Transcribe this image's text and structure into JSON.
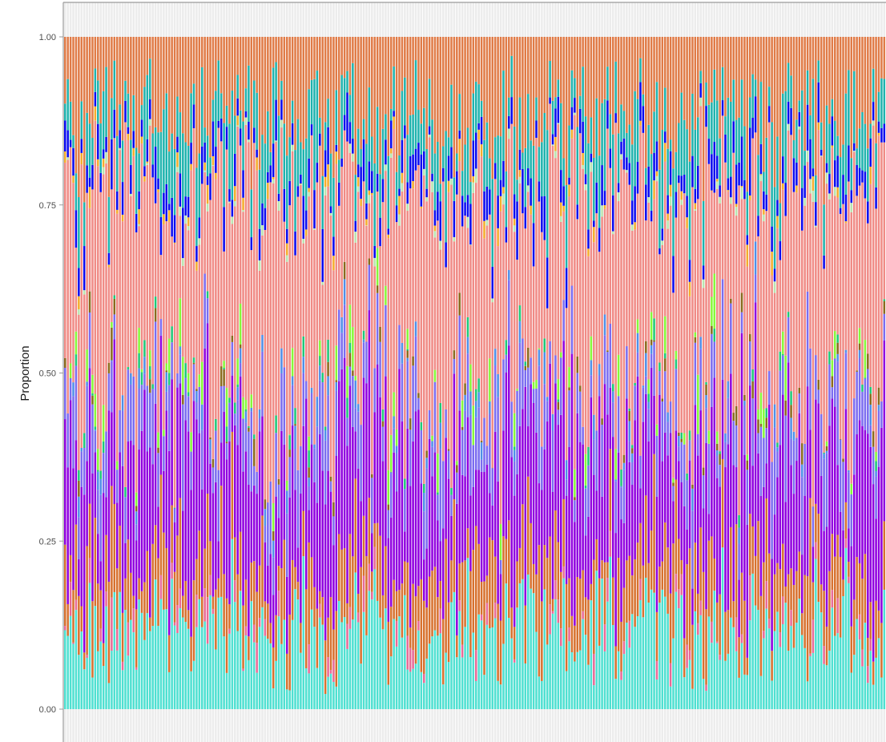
{
  "chart_data": {
    "type": "bar",
    "stacked": true,
    "orientation": "vertical",
    "xlabel": "",
    "ylabel": "Proportion",
    "ylim": [
      0,
      1
    ],
    "yticks": [
      0,
      0.25,
      0.5,
      0.75,
      1
    ],
    "ytick_labels": [
      "0.00",
      "0.25",
      "0.50",
      "0.75",
      "1.00"
    ],
    "n_bars": 300,
    "x_tick_labels_visible": false,
    "grid": false,
    "legend": "none",
    "panel_background": "#ffffff",
    "series": [
      {
        "color": "#4FE0D1",
        "mean_share": 0.11
      },
      {
        "color": "#E86A97",
        "mean_share": 0.02
      },
      {
        "color": "#D7712F",
        "mean_share": 0.08
      },
      {
        "color": "#9000DF",
        "mean_share": 0.17
      },
      {
        "color": "#7B6CF0",
        "mean_share": 0.07
      },
      {
        "color": "#4F8FE8",
        "mean_share": 0.015
      },
      {
        "color": "#8A6A1E",
        "mean_share": 0.01
      },
      {
        "color": "#1FC879",
        "mean_share": 0.01
      },
      {
        "color": "#86F83A",
        "mean_share": 0.025
      },
      {
        "color": "#F08B86",
        "mean_share": 0.3
      },
      {
        "color": "#B9E5B0",
        "mean_share": 0.006
      },
      {
        "color": "#F4AD2C",
        "mean_share": 0.01
      },
      {
        "color": "#0A0AF0",
        "mean_share": 0.035
      },
      {
        "color": "#1FB3AE",
        "mean_share": 0.07
      },
      {
        "color": "#E07B47",
        "mean_share": 0.12
      }
    ]
  }
}
